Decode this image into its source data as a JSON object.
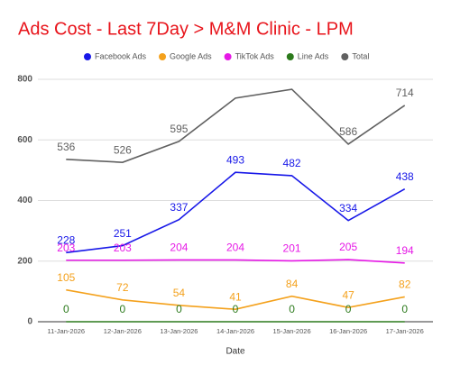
{
  "chart_data": {
    "type": "line",
    "title": "Ads Cost - Last 7Day > M&M Clinic - LPM",
    "x_label": "Date",
    "categories": [
      "11-Jan-2026",
      "12-Jan-2026",
      "13-Jan-2026",
      "14-Jan-2026",
      "15-Jan-2026",
      "16-Jan-2026",
      "17-Jan-2026"
    ],
    "series": [
      {
        "name": "Facebook Ads",
        "color": "#1717e8",
        "values": [
          228,
          251,
          337,
          493,
          482,
          334,
          438
        ]
      },
      {
        "name": "Google Ads",
        "color": "#f4a11c",
        "values": [
          105,
          72,
          54,
          41,
          84,
          47,
          82
        ]
      },
      {
        "name": "TikTok Ads",
        "color": "#e619e6",
        "values": [
          203,
          203,
          204,
          204,
          201,
          205,
          194
        ]
      },
      {
        "name": "Line Ads",
        "color": "#2c7a1c",
        "values": [
          0,
          0,
          0,
          0,
          0,
          0,
          0
        ]
      },
      {
        "name": "Total",
        "color": "#616161",
        "values": [
          536,
          526,
          595,
          738,
          767,
          586,
          714
        ],
        "value_labels": [
          "536",
          "526",
          "595",
          null,
          null,
          "586",
          "714"
        ]
      }
    ],
    "ylim": [
      0,
      800
    ],
    "yticks": [
      0,
      200,
      400,
      600,
      800
    ],
    "grid": true,
    "legend": "top"
  }
}
